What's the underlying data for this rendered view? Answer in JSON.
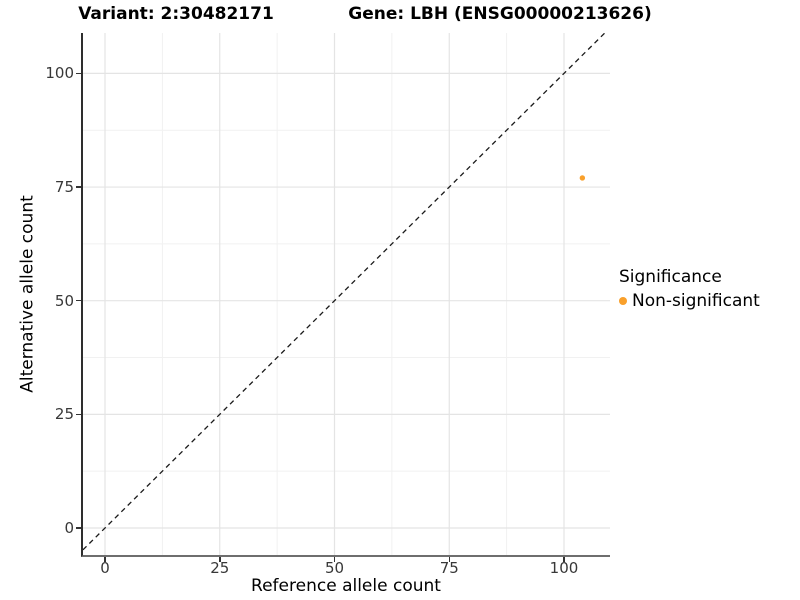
{
  "titles": {
    "variant": "Variant: 2:30482171",
    "gene": "Gene: LBH (ENSG00000213626)"
  },
  "legend": {
    "title": "Significance",
    "items": [
      {
        "label": "Non-significant",
        "color": "#F9A02B"
      }
    ]
  },
  "chart_data": {
    "type": "scatter",
    "titles": [
      "Variant: 2:30482171",
      "Gene: LBH (ENSG00000213626)"
    ],
    "xlabel": "Reference allele count",
    "ylabel": "Alternative allele count",
    "x_ticks": [
      0,
      25,
      50,
      75,
      100
    ],
    "y_ticks": [
      0,
      25,
      50,
      75,
      100
    ],
    "xlim": [
      -4.8,
      110
    ],
    "ylim": [
      -5.9,
      108.9
    ],
    "grid": "major and minor gridlines, light gray on white panel",
    "legend_position": "right",
    "series": [
      {
        "name": "Non-significant",
        "color": "#F9A02B",
        "points": [
          {
            "x": 104,
            "y": 77
          }
        ]
      }
    ],
    "reference_line": {
      "type": "identity y=x",
      "style": "dashed",
      "color": "#1a1a1a"
    }
  },
  "colors": {
    "accent_orange": "#F9A02B",
    "grid_major": "#E4E4E4",
    "grid_minor": "#F1F1F1",
    "axis_line_left": "#2e2e2e",
    "axis_line_bottom": "#6e6e6e",
    "tick_label": "#383838",
    "text": "#000000",
    "background": "#FFFFFF"
  }
}
